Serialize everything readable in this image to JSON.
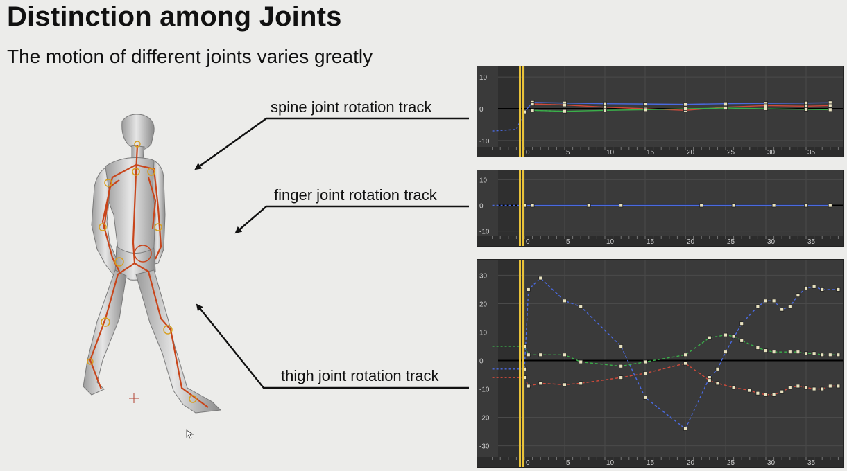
{
  "slide": {
    "title": "Distinction among Joints",
    "subtitle": "The motion of different joints varies greatly"
  },
  "labels": [
    {
      "text": "spine joint rotation track"
    },
    {
      "text": "finger joint rotation track"
    },
    {
      "text": "thigh joint rotation track"
    }
  ],
  "colors": {
    "graph_bg": "#3a3a3a",
    "time_cursor": "#e8c23a",
    "x_curve": "#d04a3a",
    "y_curve": "#3ab04a",
    "z_curve": "#4a6ae0",
    "arrow": "#111111"
  },
  "graphs": [
    {
      "name": "spine",
      "y_ticks": [
        "10",
        "0",
        "-10"
      ],
      "x_ticks": [
        "0",
        "5",
        "10",
        "15",
        "20",
        "25",
        "30",
        "35"
      ],
      "ylim": [
        -12,
        12
      ],
      "series": [
        {
          "color": "z",
          "points": [
            [
              -4,
              -7
            ],
            [
              -1,
              -6.5
            ],
            [
              0,
              -1
            ],
            [
              1,
              2
            ],
            [
              5,
              1.8
            ],
            [
              10,
              1.6
            ],
            [
              15,
              1.5
            ],
            [
              20,
              1.4
            ],
            [
              25,
              1.6
            ],
            [
              30,
              1.7
            ],
            [
              35,
              1.8
            ],
            [
              38,
              1.9
            ]
          ]
        },
        {
          "color": "x",
          "points": [
            [
              1,
              1.5
            ],
            [
              5,
              1.2
            ],
            [
              10,
              0.5
            ],
            [
              15,
              0
            ],
            [
              20,
              -0.5
            ],
            [
              25,
              0.5
            ],
            [
              30,
              1
            ],
            [
              35,
              0.8
            ],
            [
              38,
              1
            ]
          ]
        },
        {
          "color": "y",
          "points": [
            [
              1,
              -0.5
            ],
            [
              5,
              -0.8
            ],
            [
              10,
              -0.5
            ],
            [
              15,
              -0.3
            ],
            [
              20,
              0
            ],
            [
              25,
              0.2
            ],
            [
              30,
              0
            ],
            [
              35,
              -0.2
            ],
            [
              38,
              -0.3
            ]
          ]
        }
      ]
    },
    {
      "name": "finger",
      "y_ticks": [
        "10",
        "0",
        "-10"
      ],
      "x_ticks": [
        "0",
        "5",
        "10",
        "15",
        "20",
        "25",
        "30",
        "35"
      ],
      "ylim": [
        -12,
        12
      ],
      "series": [
        {
          "color": "z",
          "points": [
            [
              -4,
              0
            ],
            [
              0,
              0
            ],
            [
              1,
              0
            ],
            [
              8,
              0
            ],
            [
              12,
              0
            ],
            [
              22,
              0
            ],
            [
              26,
              0
            ],
            [
              31,
              0
            ],
            [
              35,
              0
            ],
            [
              38,
              0
            ]
          ]
        }
      ]
    },
    {
      "name": "thigh",
      "y_ticks": [
        "30",
        "20",
        "10",
        "0",
        "-10",
        "-20",
        "-30"
      ],
      "x_ticks": [
        "0",
        "5",
        "10",
        "15",
        "20",
        "25",
        "30",
        "35"
      ],
      "ylim": [
        -34,
        34
      ],
      "series": [
        {
          "color": "z",
          "points": [
            [
              -4,
              -3
            ],
            [
              0,
              -3
            ],
            [
              0.5,
              25
            ],
            [
              2,
              29
            ],
            [
              5,
              21
            ],
            [
              7,
              19
            ],
            [
              12,
              5
            ],
            [
              15,
              -13
            ],
            [
              20,
              -24
            ],
            [
              23,
              -6
            ],
            [
              24,
              -3
            ],
            [
              25,
              3
            ],
            [
              27,
              13
            ],
            [
              29,
              19
            ],
            [
              30,
              21
            ],
            [
              31,
              21
            ],
            [
              32,
              18
            ],
            [
              33,
              19
            ],
            [
              34,
              23
            ],
            [
              35,
              25.5
            ],
            [
              36,
              26
            ],
            [
              37,
              25
            ],
            [
              39,
              25
            ]
          ]
        },
        {
          "color": "y",
          "points": [
            [
              -4,
              5
            ],
            [
              0,
              5
            ],
            [
              0.5,
              2
            ],
            [
              2,
              2
            ],
            [
              5,
              2
            ],
            [
              7,
              -0.5
            ],
            [
              12,
              -2
            ],
            [
              15,
              -0.5
            ],
            [
              20,
              2
            ],
            [
              23,
              8
            ],
            [
              25,
              9
            ],
            [
              26,
              8.5
            ],
            [
              27,
              7
            ],
            [
              29,
              4.5
            ],
            [
              30,
              3.5
            ],
            [
              31,
              3
            ],
            [
              33,
              3
            ],
            [
              34,
              3
            ],
            [
              35,
              2.5
            ],
            [
              36,
              2.5
            ],
            [
              37,
              2
            ],
            [
              38,
              2
            ],
            [
              39,
              2
            ]
          ]
        },
        {
          "color": "x",
          "points": [
            [
              -4,
              -6
            ],
            [
              0,
              -6
            ],
            [
              0.5,
              -9
            ],
            [
              2,
              -8
            ],
            [
              5,
              -8.5
            ],
            [
              7,
              -8
            ],
            [
              12,
              -6
            ],
            [
              15,
              -4.5
            ],
            [
              20,
              -1
            ],
            [
              23,
              -7
            ],
            [
              24,
              -8
            ],
            [
              26,
              -9.5
            ],
            [
              28,
              -10.5
            ],
            [
              29,
              -11.5
            ],
            [
              30,
              -12
            ],
            [
              31,
              -12
            ],
            [
              32,
              -11
            ],
            [
              33,
              -9.5
            ],
            [
              34,
              -9
            ],
            [
              35,
              -9.5
            ],
            [
              36,
              -10
            ],
            [
              37,
              -10
            ],
            [
              38,
              -9
            ],
            [
              39,
              -9
            ]
          ]
        }
      ]
    }
  ]
}
